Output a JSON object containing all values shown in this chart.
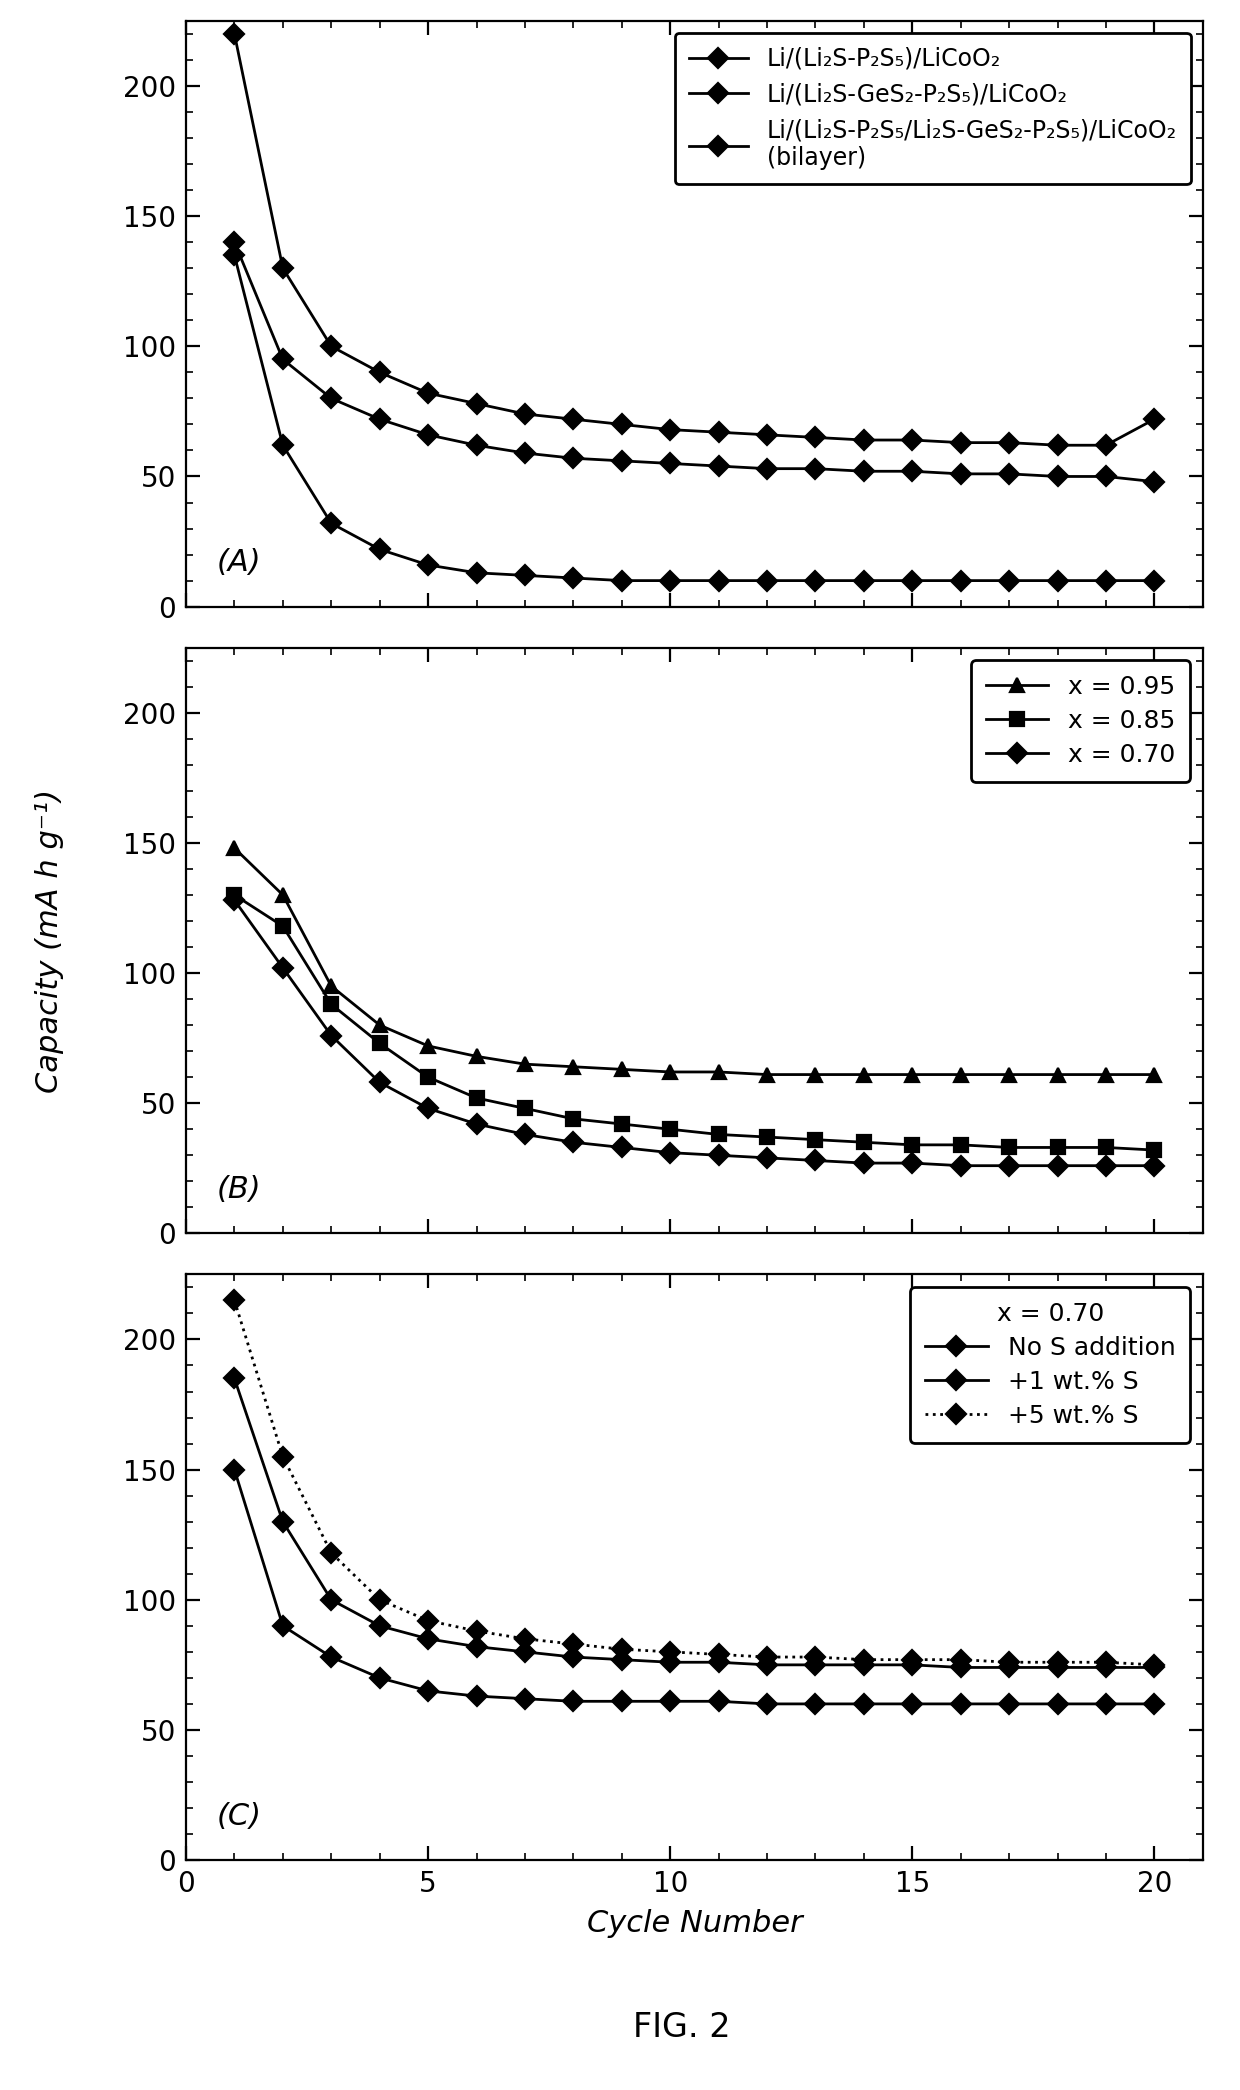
{
  "panel_A": {
    "label": "(A)",
    "legend_entries": [
      "Li/(Li₂S-P₂S₅)/LiCoO₂",
      "Li/(Li₂S-GeS₂-P₂S₅)/LiCoO₂",
      "Li/(Li₂S-P₂S₅/Li₂S-GeS₂-P₂S₅)/LiCoO₂\n(bilayer)"
    ],
    "cycles": [
      1,
      2,
      3,
      4,
      5,
      6,
      7,
      8,
      9,
      10,
      11,
      12,
      13,
      14,
      15,
      16,
      17,
      18,
      19,
      20
    ],
    "series": [
      [
        220,
        130,
        100,
        90,
        82,
        78,
        74,
        72,
        70,
        68,
        67,
        66,
        65,
        64,
        64,
        63,
        63,
        62,
        62,
        72
      ],
      [
        140,
        95,
        80,
        72,
        66,
        62,
        59,
        57,
        56,
        55,
        54,
        53,
        53,
        52,
        52,
        51,
        51,
        50,
        50,
        48
      ],
      [
        135,
        62,
        32,
        22,
        16,
        13,
        12,
        11,
        10,
        10,
        10,
        10,
        10,
        10,
        10,
        10,
        10,
        10,
        10,
        10
      ]
    ],
    "ylim": [
      0,
      225
    ],
    "yticks": [
      0,
      50,
      100,
      150,
      200
    ],
    "line_styles": [
      "-",
      "-",
      "-"
    ],
    "markers": [
      "D",
      "D",
      "D"
    ],
    "colors": [
      "#000000",
      "#000000",
      "#000000"
    ],
    "markersizes": [
      5,
      5,
      5
    ]
  },
  "panel_B": {
    "label": "(B)",
    "legend_entries": [
      "x = 0.95",
      "x = 0.85",
      "x = 0.70"
    ],
    "cycles": [
      1,
      2,
      3,
      4,
      5,
      6,
      7,
      8,
      9,
      10,
      11,
      12,
      13,
      14,
      15,
      16,
      17,
      18,
      19,
      20
    ],
    "series": [
      [
        148,
        130,
        95,
        80,
        72,
        68,
        65,
        64,
        63,
        62,
        62,
        61,
        61,
        61,
        61,
        61,
        61,
        61,
        61,
        61
      ],
      [
        130,
        118,
        88,
        73,
        60,
        52,
        48,
        44,
        42,
        40,
        38,
        37,
        36,
        35,
        34,
        34,
        33,
        33,
        33,
        32
      ],
      [
        128,
        102,
        76,
        58,
        48,
        42,
        38,
        35,
        33,
        31,
        30,
        29,
        28,
        27,
        27,
        26,
        26,
        26,
        26,
        26
      ]
    ],
    "ylim": [
      0,
      225
    ],
    "yticks": [
      0,
      50,
      100,
      150,
      200
    ],
    "line_styles": [
      "-",
      "-",
      "-"
    ],
    "markers": [
      "^",
      "s",
      "D"
    ],
    "colors": [
      "#000000",
      "#000000",
      "#000000"
    ],
    "markersizes": [
      5,
      5,
      5
    ]
  },
  "panel_C": {
    "label": "(C)",
    "legend_title": "x = 0.70",
    "legend_entries": [
      "No S addition",
      "+1 wt.% S",
      "+5 wt.% S"
    ],
    "cycles": [
      1,
      2,
      3,
      4,
      5,
      6,
      7,
      8,
      9,
      10,
      11,
      12,
      13,
      14,
      15,
      16,
      17,
      18,
      19,
      20
    ],
    "series": [
      [
        150,
        90,
        78,
        70,
        65,
        63,
        62,
        61,
        61,
        61,
        61,
        60,
        60,
        60,
        60,
        60,
        60,
        60,
        60,
        60
      ],
      [
        185,
        130,
        100,
        90,
        85,
        82,
        80,
        78,
        77,
        76,
        76,
        75,
        75,
        75,
        75,
        74,
        74,
        74,
        74,
        74
      ],
      [
        215,
        155,
        118,
        100,
        92,
        88,
        85,
        83,
        81,
        80,
        79,
        78,
        78,
        77,
        77,
        77,
        76,
        76,
        76,
        75
      ]
    ],
    "ylim": [
      0,
      225
    ],
    "yticks": [
      0,
      50,
      100,
      150,
      200
    ],
    "line_styles": [
      "-",
      "-",
      ":"
    ],
    "markers": [
      "D",
      "D",
      "D"
    ],
    "colors": [
      "#000000",
      "#000000",
      "#000000"
    ],
    "markersizes": [
      5,
      5,
      5
    ]
  },
  "xlabel": "Cycle Number",
  "ylabel": "Capacity (mA h g⁻¹)",
  "fig_label": "FIG. 2",
  "xlim": [
    0,
    21
  ],
  "xticks": [
    0,
    5,
    10,
    15,
    20
  ]
}
